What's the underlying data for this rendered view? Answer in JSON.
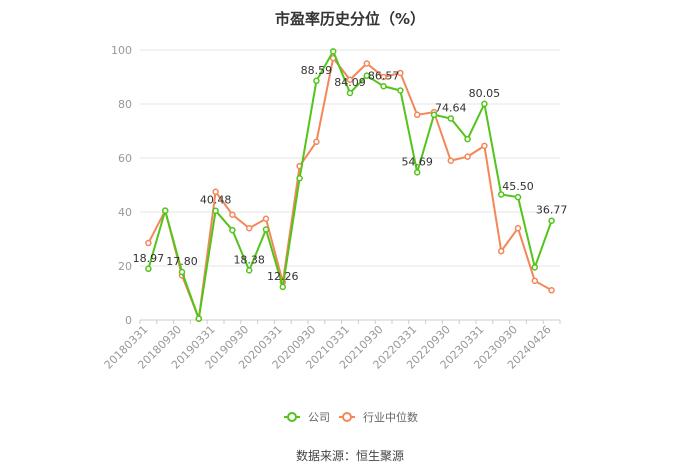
{
  "chart_data": {
    "type": "line",
    "title": "市盈率历史分位（%）",
    "ylim": [
      0,
      100
    ],
    "yticks": [
      0,
      20,
      40,
      60,
      80,
      100
    ],
    "grid": true,
    "legend_placement": "bottom-center",
    "x": [
      "20180331",
      "20180630",
      "20180930",
      "20181231",
      "20190331",
      "20190630",
      "20190930",
      "20191231",
      "20200331",
      "20200630",
      "20200930",
      "20201231",
      "20210331",
      "20210630",
      "20210930",
      "20211231",
      "20220331",
      "20220630",
      "20220930",
      "20221231",
      "20230331",
      "20230630",
      "20230930",
      "20231231",
      "20240426"
    ],
    "xtick_labels": [
      "20180331",
      "20180930",
      "20190331",
      "20190930",
      "20200331",
      "20200930",
      "20210331",
      "20210930",
      "20220331",
      "20220930",
      "20230331",
      "20230930",
      "20240426"
    ],
    "series": [
      {
        "name": "公司",
        "color": "#52c41a",
        "values": [
          18.97,
          40.5,
          17.8,
          0.5,
          40.48,
          33.3,
          18.38,
          33.5,
          12.26,
          52.5,
          88.59,
          99.5,
          84.09,
          90.5,
          86.57,
          85.0,
          54.69,
          76.0,
          74.64,
          67.0,
          80.05,
          46.5,
          45.5,
          19.5,
          36.77
        ],
        "data_labels": {
          "0": "18.97",
          "2": "17.80",
          "4": "40.48",
          "6": "18.38",
          "8": "12.26",
          "10": "88.59",
          "12": "84.09",
          "14": "86.57",
          "16": "54.69",
          "18": "74.64",
          "20": "80.05",
          "22": "45.50",
          "24": "36.77"
        }
      },
      {
        "name": "行业中位数",
        "color": "#f4875a",
        "values": [
          28.5,
          40.5,
          16.5,
          0.5,
          47.5,
          39.0,
          34.0,
          37.5,
          14.0,
          57.0,
          66.0,
          97.0,
          89.0,
          95.0,
          90.0,
          91.5,
          76.0,
          77.0,
          59.0,
          60.5,
          64.5,
          25.5,
          34.0,
          14.5,
          11.0
        ]
      }
    ]
  },
  "source": "数据来源：恒生聚源"
}
